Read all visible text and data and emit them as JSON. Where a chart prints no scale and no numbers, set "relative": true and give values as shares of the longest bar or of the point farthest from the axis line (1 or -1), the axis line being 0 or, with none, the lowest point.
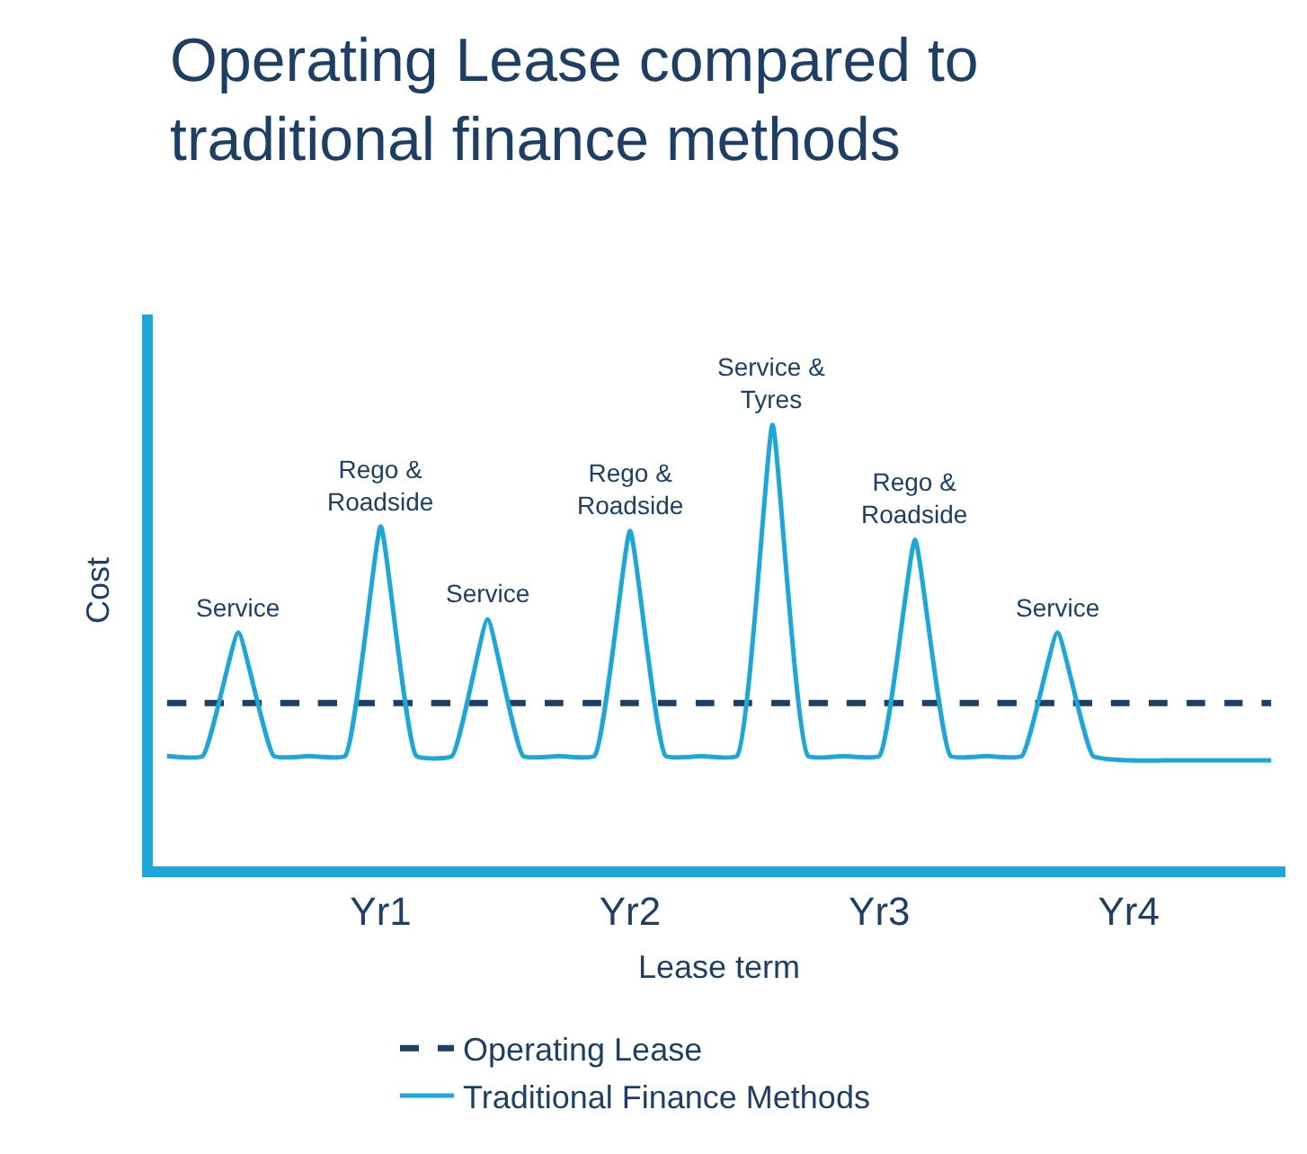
{
  "chart_data": {
    "type": "line",
    "title": "Operating Lease compared to\ntraditional finance methods",
    "xlabel": "Lease term",
    "ylabel": "Cost",
    "relative": true,
    "categories": [
      null,
      null,
      null,
      null,
      null,
      null,
      "Yr1",
      null,
      null,
      null,
      null,
      null,
      null,
      "Yr2",
      null,
      null,
      null,
      null,
      null,
      null,
      "Yr3",
      null,
      null,
      null,
      null,
      null,
      null,
      "Yr4",
      null,
      null,
      null,
      null
    ],
    "series": [
      {
        "name": "Operating Lease",
        "color": "#1d3f66",
        "line_style": "dashed",
        "values": [
          0.37,
          0.37,
          0.37,
          0.37,
          0.37,
          0.37,
          0.37,
          0.37,
          0.37,
          0.37,
          0.37,
          0.37,
          0.37,
          0.37,
          0.37,
          0.37,
          0.37,
          0.37,
          0.37,
          0.37,
          0.37,
          0.37,
          0.37,
          0.37,
          0.37,
          0.37,
          0.37,
          0.37,
          0.37,
          0.37,
          0.37,
          0.37
        ]
      },
      {
        "name": "Traditional Finance Methods",
        "color": "#1aa7d9",
        "line_style": "solid",
        "values": [
          0.25,
          0.25,
          0.53,
          0.25,
          0.25,
          0.25,
          0.77,
          0.25,
          0.25,
          0.56,
          0.25,
          0.25,
          0.25,
          0.76,
          0.25,
          0.25,
          0.25,
          1,
          0.25,
          0.25,
          0.25,
          0.74,
          0.25,
          0.25,
          0.25,
          0.53,
          0.25,
          0.24,
          0.24,
          0.24,
          0.24,
          0.24
        ]
      }
    ],
    "annotations": [
      "Service",
      {
        "text": "Rego &\nRoadside",
        "x": "Yr1",
        "y": 0.77
      },
      "Service",
      {
        "text": "Rego &\nRoadside",
        "x": "Yr2",
        "y": 0.76
      },
      "Service &\nTyres",
      "Rego &\nRoadside",
      "Service"
    ],
    "legend": "bottom"
  }
}
